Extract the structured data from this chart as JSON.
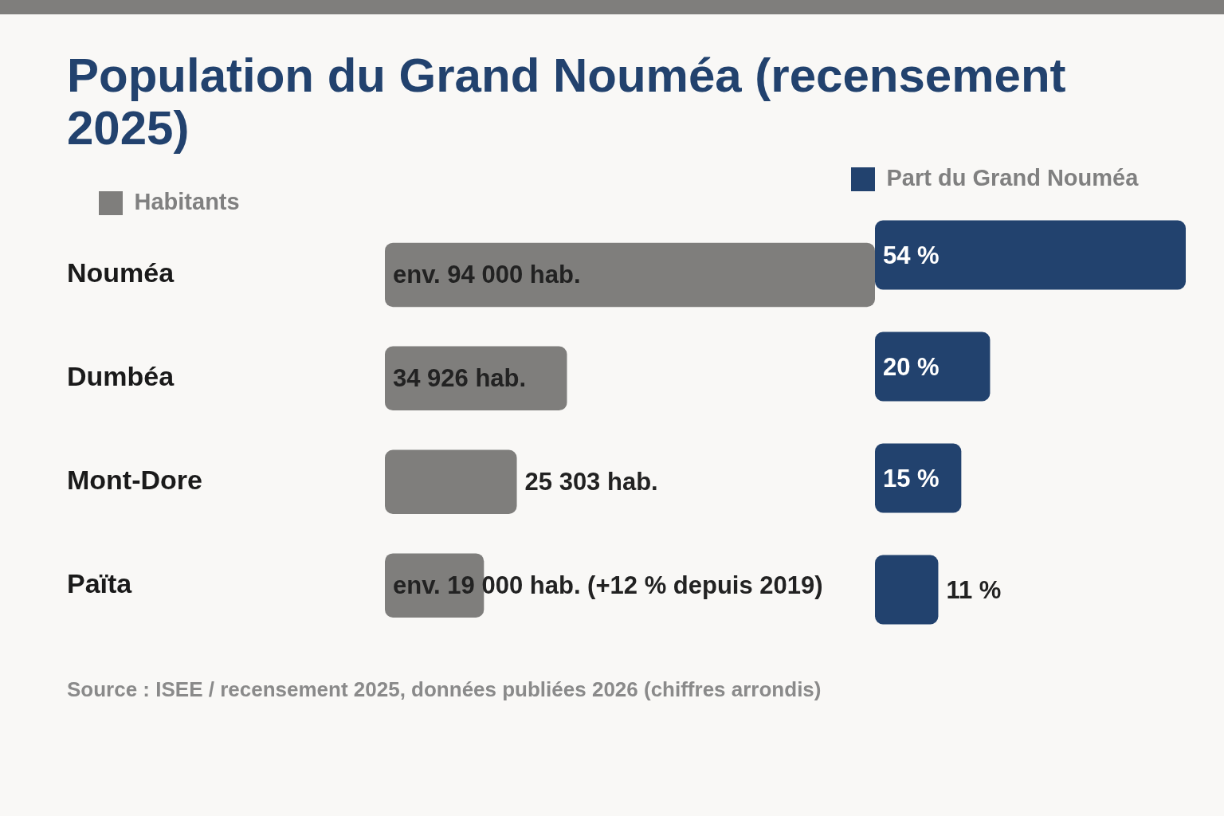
{
  "chart_data": [
    {
      "type": "bar",
      "title": "Population du Grand Nouméa (recensement 2025)",
      "orientation": "horizontal",
      "legend": "top left",
      "tick_labels": "y",
      "categories": [
        "Nouméa",
        "Dumbéa",
        "Mont-Dore",
        "Païta"
      ],
      "series": [
        {
          "name": "Habitants",
          "color": "#7f7e7c",
          "values": [
            94000,
            34926,
            25303,
            19000
          ],
          "value_labels": [
            "env. 94 000 hab.",
            "34 926 hab.",
            "25 303 hab.",
            "env. 19 000 hab. (+12 % depuis 2019)"
          ]
        }
      ],
      "annotations": [
        "Source : ISEE / recensement 2025, données publiées 2026 (chiffres arrondis)"
      ]
    },
    {
      "type": "bar",
      "orientation": "horizontal",
      "legend": "top left",
      "tick_labels": false,
      "categories": [
        null,
        null,
        null,
        null
      ],
      "series": [
        {
          "name": "Part du Grand Nouméa",
          "color": "#22426e",
          "values": [
            54,
            20,
            15,
            11
          ],
          "value_labels": [
            "54 %",
            "20 %",
            "15 %",
            "11 %"
          ]
        }
      ]
    }
  ]
}
